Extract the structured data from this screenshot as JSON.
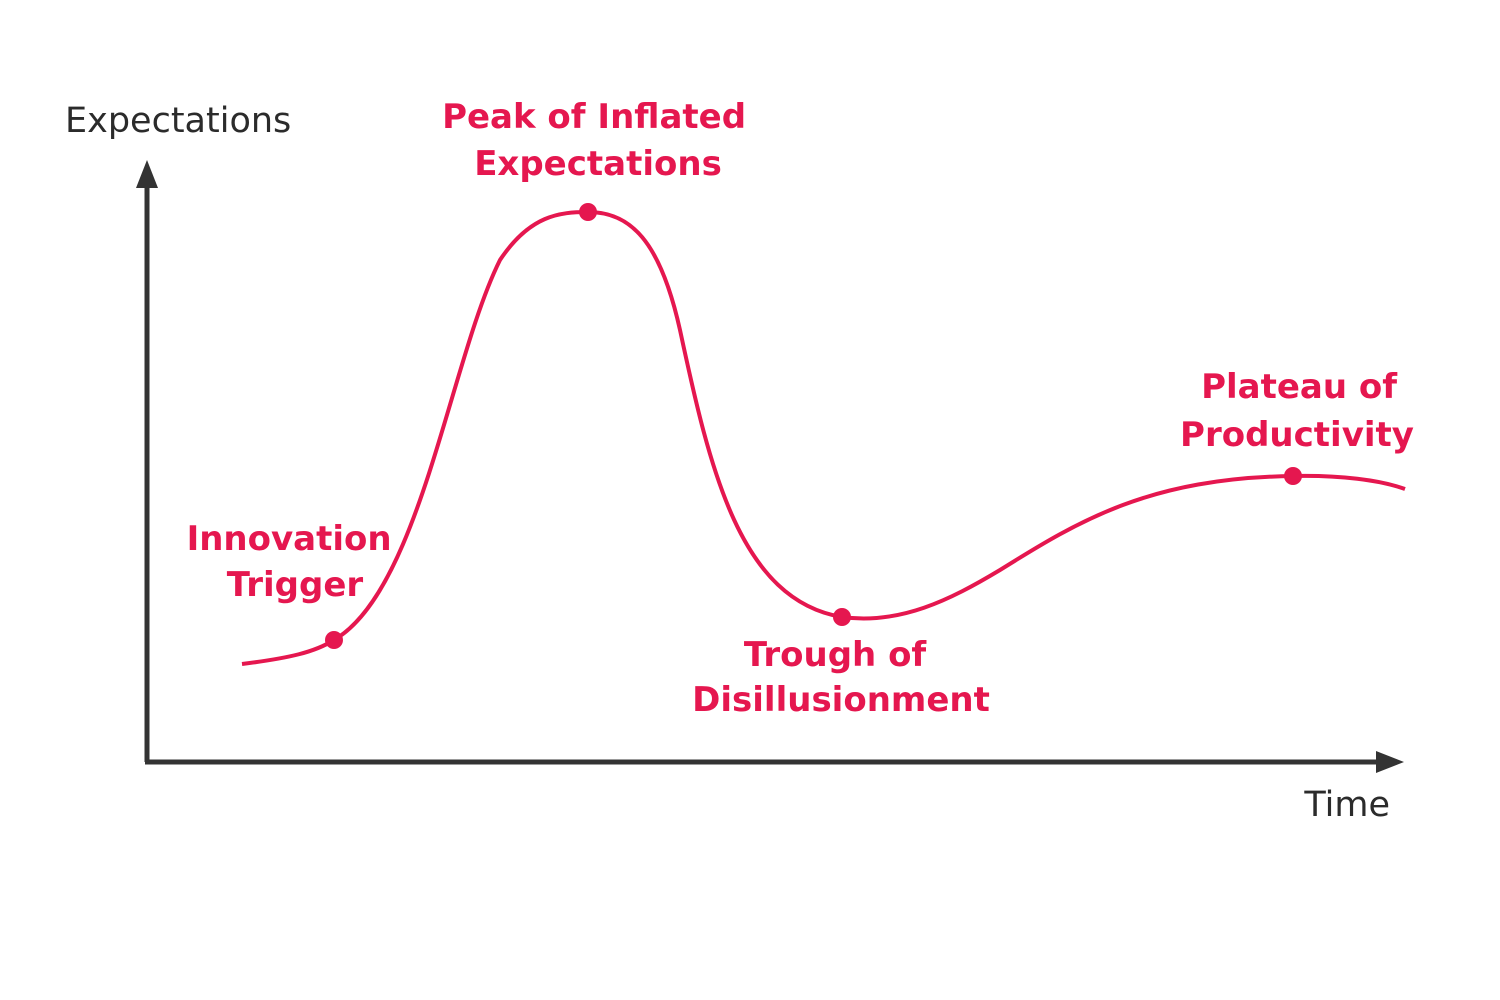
{
  "axes": {
    "y_label": "Expectations",
    "x_label": "Time"
  },
  "phases": [
    {
      "label_lines": [
        "Innovation",
        "Trigger"
      ]
    },
    {
      "label_lines": [
        "Peak of Inflated",
        "Expectations"
      ]
    },
    {
      "label_lines": [
        "Trough of",
        "Disillusionment"
      ]
    },
    {
      "label_lines": [
        "Plateau of",
        "Productivity"
      ]
    }
  ]
}
